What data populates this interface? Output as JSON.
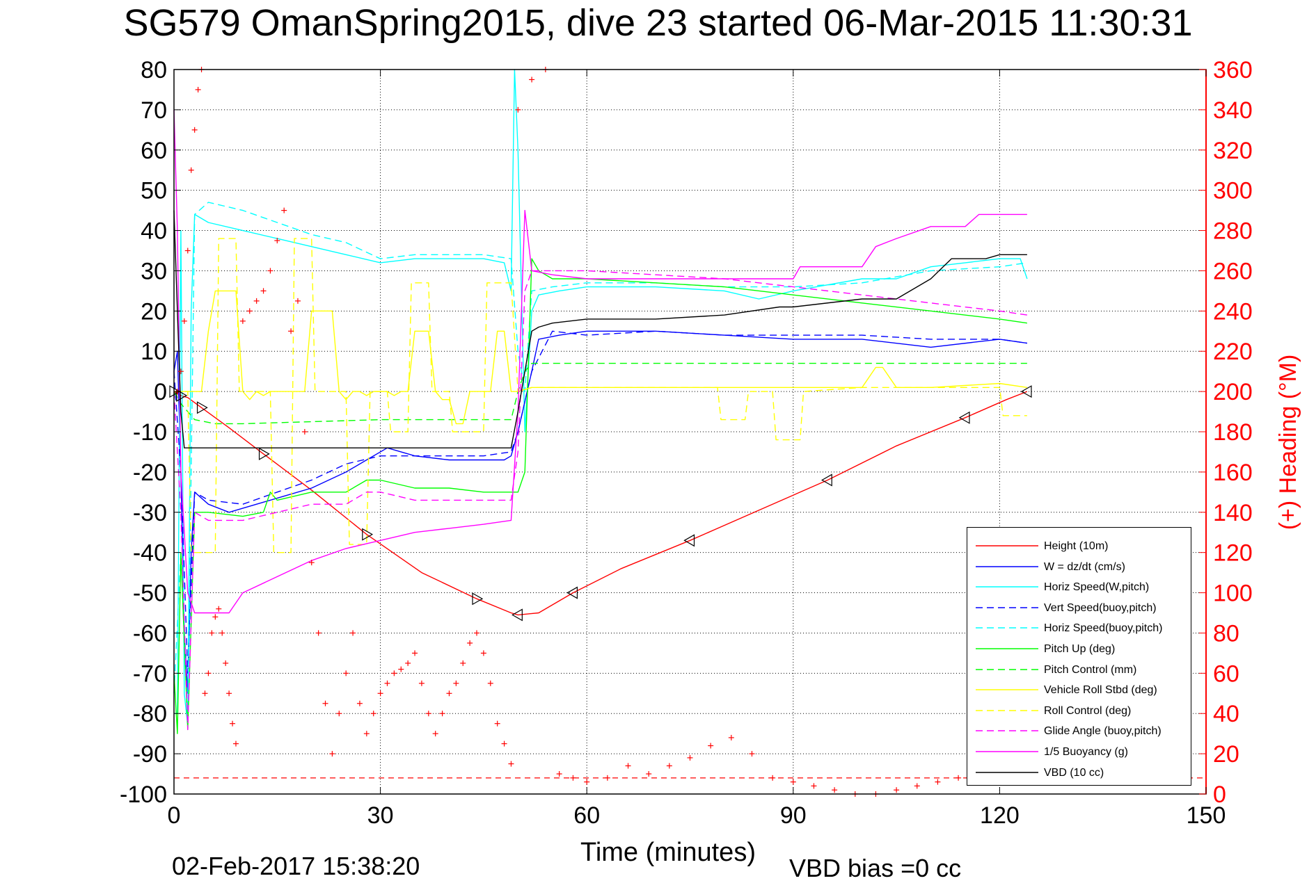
{
  "title": "SG579 OmanSpring2015, dive 23 started 06-Mar-2015 11:30:31",
  "footer": {
    "timestamp": "02-Feb-2017 15:38:20",
    "vbd_bias": "VBD bias =0 cc"
  },
  "chart_data": {
    "type": "line",
    "xlabel": "Time (minutes)",
    "ylabel_left": "",
    "ylabel_right": "(+) Heading (°M)",
    "xlim": [
      0,
      150
    ],
    "ylim_left": [
      -100,
      80
    ],
    "ylim_right": [
      0,
      360
    ],
    "xticks": [
      0,
      30,
      60,
      90,
      120,
      150
    ],
    "yticks_left": [
      80,
      70,
      60,
      50,
      40,
      30,
      20,
      10,
      0,
      -10,
      -20,
      -30,
      -40,
      -50,
      -60,
      -70,
      -80,
      -90,
      -100
    ],
    "yticks_right": [
      360,
      340,
      320,
      300,
      280,
      260,
      240,
      220,
      200,
      180,
      160,
      140,
      120,
      100,
      80,
      60,
      40,
      20,
      0
    ],
    "grid": true,
    "legend_position": "bottom-right",
    "series": [
      {
        "name": "Height (10m)",
        "color": "#ff0000",
        "style": "solid",
        "x": [
          0,
          0.5,
          1,
          2,
          4,
          8,
          13,
          20,
          28,
          36,
          44,
          49,
          50,
          53,
          58,
          65,
          75,
          85,
          95,
          105,
          115,
          121,
          124
        ],
        "y": [
          0,
          -0.5,
          -1,
          -1.5,
          -4,
          -9,
          -15.5,
          -24.5,
          -35.5,
          -45,
          -51.5,
          -55,
          -55.5,
          -55,
          -50,
          -44,
          -37,
          -29.5,
          -22,
          -13.5,
          -6.5,
          -2,
          0
        ]
      },
      {
        "name": "W = dz/dt (cm/s)",
        "color": "#0000ff",
        "style": "solid",
        "x": [
          0,
          0.5,
          1,
          1.5,
          2,
          2.5,
          3,
          5,
          8,
          12,
          16,
          20,
          25,
          28,
          31,
          35,
          40,
          45,
          48,
          49,
          50,
          52,
          53,
          56,
          60,
          70,
          80,
          90,
          100,
          110,
          120,
          124
        ],
        "y": [
          5,
          10,
          -20,
          -60,
          -75,
          -40,
          -25,
          -28,
          -30,
          -28,
          -26,
          -24,
          -20,
          -17,
          -14,
          -16,
          -17,
          -17,
          -17,
          -16,
          -10,
          5,
          13,
          14,
          15,
          15,
          14,
          13,
          13,
          11,
          13,
          12
        ]
      },
      {
        "name": "Horiz Speed(W,pitch)",
        "color": "#00ffff",
        "style": "solid",
        "x": [
          0,
          0.5,
          1,
          1.5,
          2,
          2.5,
          3,
          5,
          10,
          15,
          20,
          25,
          30,
          35,
          40,
          45,
          48,
          49,
          49.5,
          50,
          51,
          52,
          53,
          56,
          60,
          70,
          80,
          85,
          90,
          100,
          105,
          110,
          115,
          120,
          123,
          124
        ],
        "y": [
          -80,
          -80,
          40,
          -75,
          -83,
          20,
          44,
          42,
          40,
          38,
          36,
          34,
          32,
          33,
          33,
          33,
          32,
          25,
          80,
          60,
          -10,
          20,
          24,
          25,
          26,
          26,
          25,
          23,
          25,
          28,
          28,
          31,
          32,
          33,
          33,
          28
        ]
      },
      {
        "name": "Vert Speed(buoy,pitch)",
        "color": "#0000ff",
        "style": "dashed",
        "x": [
          0,
          1,
          2,
          3,
          5,
          10,
          15,
          20,
          25,
          30,
          35,
          40,
          45,
          49,
          50,
          52,
          55,
          60,
          70,
          80,
          90,
          100,
          110,
          120,
          124
        ],
        "y": [
          5,
          -20,
          -70,
          -25,
          -27,
          -28,
          -25,
          -22,
          -18,
          -16,
          -16,
          -16,
          -16,
          -15,
          -10,
          5,
          15,
          14,
          15,
          14,
          14,
          14,
          13,
          13,
          12
        ]
      },
      {
        "name": "Horiz Speed(buoy,pitch)",
        "color": "#00ffff",
        "style": "dashed",
        "x": [
          0,
          1,
          2,
          3,
          5,
          10,
          15,
          20,
          25,
          30,
          35,
          40,
          45,
          49,
          50,
          51,
          52,
          55,
          60,
          70,
          80,
          90,
          100,
          110,
          120,
          124
        ],
        "y": [
          -75,
          -40,
          -82,
          44,
          47,
          45,
          42,
          39,
          37,
          33,
          34,
          34,
          34,
          33,
          10,
          0,
          25,
          26,
          27,
          27,
          26,
          26,
          27,
          30,
          31,
          32
        ]
      },
      {
        "name": "Pitch Up (deg)",
        "color": "#00ff00",
        "style": "solid",
        "x": [
          0,
          0.5,
          1,
          2,
          3,
          5,
          10,
          13,
          14,
          15,
          20,
          25,
          28,
          30,
          35,
          40,
          45,
          48,
          49,
          50,
          51,
          52,
          53,
          55,
          60,
          70,
          80,
          90,
          100,
          110,
          120,
          124
        ],
        "y": [
          -70,
          -85,
          -40,
          -84,
          -30,
          -30,
          -31,
          -30,
          -25,
          -27,
          -25,
          -25,
          -22,
          -22,
          -24,
          -24,
          -25,
          -25,
          -25,
          -25,
          -20,
          33,
          30,
          28,
          28,
          27,
          26,
          24,
          22,
          20,
          18,
          17
        ]
      },
      {
        "name": "Pitch Control (mm)",
        "color": "#00ff00",
        "style": "dashed",
        "x": [
          0,
          1,
          2,
          3,
          6,
          10,
          20,
          30,
          40,
          48,
          49,
          50,
          51,
          52,
          60,
          80,
          100,
          124
        ],
        "y": [
          0,
          -3,
          -5,
          -7,
          -8,
          -8,
          -7.5,
          -7,
          -7,
          -7,
          -7,
          0,
          5,
          7,
          7,
          7,
          7,
          7
        ]
      },
      {
        "name": "Vehicle Roll Stbd (deg)",
        "color": "#ffff00",
        "style": "solid",
        "x": [
          0,
          2,
          4,
          5,
          6,
          7,
          8,
          9,
          10,
          11,
          12,
          13,
          14,
          15,
          16,
          17,
          18,
          19,
          20,
          21,
          22,
          23,
          24,
          25,
          26,
          27,
          28,
          29,
          30,
          31,
          32,
          33,
          34,
          35,
          36,
          37,
          38,
          39,
          40,
          41,
          42,
          43,
          44,
          45,
          46,
          47,
          48,
          49,
          50,
          52,
          55,
          60,
          70,
          78,
          80,
          85,
          90,
          100,
          102,
          103,
          105,
          110,
          120,
          124
        ],
        "y": [
          0,
          0,
          0,
          15,
          25,
          25,
          25,
          25,
          0,
          -2,
          0,
          -1,
          0,
          0,
          0,
          0,
          0,
          0,
          20,
          20,
          20,
          20,
          0,
          -2,
          0,
          0,
          -1,
          0,
          0,
          0,
          -1,
          0,
          0,
          15,
          15,
          15,
          0,
          -2,
          -2,
          -8,
          -8,
          0,
          0,
          0,
          0,
          15,
          15,
          0,
          0,
          1,
          1,
          1,
          1,
          1,
          1,
          1,
          1,
          1,
          6,
          6,
          1,
          1,
          2,
          1
        ]
      },
      {
        "name": "Roll Control (deg)",
        "color": "#ffff00",
        "style": "dashed",
        "x": [
          0,
          2,
          2.5,
          3,
          6,
          6.5,
          9,
          9.5,
          14,
          14.5,
          17,
          17.5,
          20,
          20.5,
          25,
          25.5,
          28,
          28.5,
          31,
          31.5,
          34,
          34.5,
          37,
          37.5,
          40,
          40.5,
          45,
          45.5,
          49,
          50,
          52,
          60,
          79,
          79.5,
          83,
          83.5,
          87,
          87.5,
          91,
          91.5,
          100,
          110,
          120,
          120.5,
          124
        ],
        "y": [
          0,
          0,
          -40,
          -40,
          -40,
          38,
          38,
          0,
          0,
          -40,
          -40,
          38,
          38,
          0,
          0,
          -38,
          -38,
          0,
          0,
          -10,
          -10,
          27,
          27,
          0,
          0,
          -10,
          -10,
          27,
          27,
          0,
          1,
          1,
          1,
          -7,
          -7,
          0,
          0,
          -12,
          -12,
          0,
          1,
          1,
          1,
          -6,
          -6
        ]
      },
      {
        "name": "Glide Angle (buoy,pitch)",
        "color": "#ff00ff",
        "style": "dashed",
        "x": [
          0,
          1,
          2,
          3,
          5,
          10,
          15,
          20,
          25,
          28,
          30,
          35,
          40,
          45,
          48,
          49,
          50,
          51,
          52,
          55,
          60,
          70,
          80,
          90,
          100,
          110,
          120,
          124
        ],
        "y": [
          0,
          -30,
          -84,
          -30,
          -32,
          -32,
          -30,
          -28,
          -28,
          -25,
          -25,
          -27,
          -27,
          -27,
          -27,
          -27,
          -15,
          25,
          30,
          30,
          30,
          29,
          28,
          26,
          24,
          22,
          20,
          19
        ]
      },
      {
        "name": "1/5 Buoyancy (g)",
        "color": "#ff00ff",
        "style": "solid",
        "x": [
          0,
          0.5,
          1,
          2,
          3,
          5,
          8,
          10,
          15,
          20,
          25,
          30,
          35,
          40,
          45,
          49,
          50,
          51,
          52,
          55,
          60,
          70,
          80,
          90,
          91,
          100,
          102,
          105,
          110,
          115,
          117,
          120,
          124
        ],
        "y": [
          70,
          40,
          -20,
          -50,
          -55,
          -55,
          -55,
          -50,
          -46,
          -42,
          -39,
          -37,
          -35,
          -34,
          -33,
          -32,
          -5,
          45,
          30,
          29,
          28,
          28,
          28,
          28,
          31,
          31,
          36,
          38,
          41,
          41,
          44,
          44,
          44
        ]
      },
      {
        "name": "VBD (10 cc)",
        "color": "#000000",
        "style": "solid",
        "x": [
          0,
          0.5,
          1,
          1.5,
          2,
          2.5,
          3,
          5,
          10,
          20,
          30,
          40,
          48,
          49,
          50,
          51,
          52,
          53,
          55,
          60,
          70,
          80,
          88,
          90,
          100,
          105,
          110,
          113,
          118,
          120,
          124
        ],
        "y": [
          45,
          20,
          -5,
          -14,
          -14,
          -14,
          -14,
          -14,
          -14,
          -14,
          -14,
          -14,
          -14,
          -14,
          -5,
          5,
          15,
          16,
          17,
          18,
          18,
          19,
          21,
          21,
          23,
          23,
          28,
          33,
          33,
          34,
          34
        ]
      }
    ],
    "heading_points": {
      "name": "(+) Heading (°M)",
      "color": "#ff0000",
      "marker": "+",
      "axis": "right",
      "x": [
        0.5,
        1,
        1.5,
        2,
        2.5,
        3,
        3.5,
        4,
        4.5,
        5,
        5.5,
        6,
        6.5,
        7,
        7.5,
        8,
        8.5,
        9,
        10,
        11,
        12,
        13,
        14,
        15,
        16,
        17,
        18,
        19,
        20,
        21,
        22,
        23,
        24,
        25,
        26,
        27,
        28,
        29,
        30,
        31,
        32,
        33,
        34,
        35,
        36,
        37,
        38,
        39,
        40,
        41,
        42,
        43,
        44,
        45,
        46,
        47,
        48,
        49,
        50,
        52,
        54,
        56,
        58,
        60,
        63,
        66,
        69,
        72,
        75,
        78,
        81,
        84,
        87,
        90,
        93,
        96,
        99,
        102,
        105,
        108,
        111,
        114,
        117,
        120
      ],
      "y": [
        200,
        210,
        235,
        270,
        310,
        330,
        350,
        360,
        50,
        60,
        80,
        88,
        92,
        80,
        65,
        50,
        35,
        25,
        235,
        240,
        245,
        250,
        260,
        275,
        290,
        230,
        245,
        180,
        115,
        80,
        45,
        20,
        40,
        60,
        80,
        45,
        30,
        40,
        50,
        55,
        60,
        62,
        65,
        70,
        55,
        40,
        30,
        40,
        50,
        55,
        65,
        75,
        80,
        70,
        55,
        35,
        25,
        15,
        340,
        355,
        360,
        10,
        8,
        6,
        8,
        14,
        10,
        14,
        18,
        24,
        28,
        20,
        8,
        6,
        4,
        2,
        0,
        0,
        2,
        4,
        6,
        8,
        10,
        12
      ]
    },
    "heading_ref_line": {
      "color": "#ff0000",
      "style": "dashed",
      "y_right": 8
    }
  },
  "legend": {
    "items": [
      {
        "label": "Height (10m)",
        "color": "#ff0000",
        "style": "solid"
      },
      {
        "label": "W = dz/dt (cm/s)",
        "color": "#0000ff",
        "style": "solid"
      },
      {
        "label": "Horiz Speed(W,pitch)",
        "color": "#00ffff",
        "style": "solid"
      },
      {
        "label": "Vert Speed(buoy,pitch)",
        "color": "#0000ff",
        "style": "dashed"
      },
      {
        "label": "Horiz Speed(buoy,pitch)",
        "color": "#00ffff",
        "style": "dashed"
      },
      {
        "label": "Pitch Up (deg)",
        "color": "#00ff00",
        "style": "solid"
      },
      {
        "label": "Pitch Control (mm)",
        "color": "#00ff00",
        "style": "dashed"
      },
      {
        "label": "Vehicle Roll Stbd (deg)",
        "color": "#ffff00",
        "style": "solid"
      },
      {
        "label": "Roll Control (deg)",
        "color": "#ffff00",
        "style": "dashed"
      },
      {
        "label": "Glide Angle (buoy,pitch)",
        "color": "#ff00ff",
        "style": "dashed"
      },
      {
        "label": "1/5 Buoyancy (g)",
        "color": "#ff00ff",
        "style": "solid"
      },
      {
        "label": "VBD (10 cc)",
        "color": "#000000",
        "style": "solid"
      }
    ]
  }
}
